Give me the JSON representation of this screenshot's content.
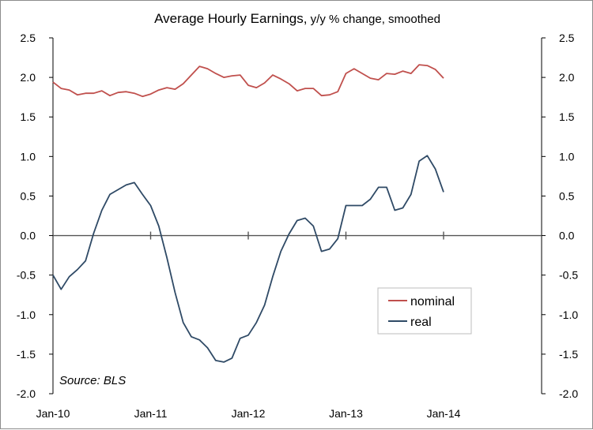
{
  "chart_data": {
    "type": "line",
    "title_main": "Average Hourly Earnings,",
    "title_sub": " y/y % change, smoothed",
    "source": "Source: BLS",
    "x_tick_labels": [
      "Jan-10",
      "Jan-11",
      "Jan-12",
      "Jan-13",
      "Jan-14"
    ],
    "y_tick_labels": [
      "2.5",
      "2.0",
      "1.5",
      "1.0",
      "0.5",
      "0.0",
      "-0.5",
      "-1.0",
      "-1.5",
      "-2.0"
    ],
    "ylim": [
      -2.0,
      2.5
    ],
    "y_ticks": [
      2.5,
      2.0,
      1.5,
      1.0,
      0.5,
      0.0,
      -0.5,
      -1.0,
      -1.5,
      -2.0
    ],
    "x_start": "Jan-10",
    "x_months": 48,
    "grid": false,
    "legend_position": "lower-right",
    "colors": {
      "nominal": "#c0504d",
      "real": "#2f4a66",
      "axis": "#000000"
    },
    "series": [
      {
        "name": "nominal",
        "values": [
          1.94,
          1.86,
          1.84,
          1.78,
          1.8,
          1.8,
          1.83,
          1.77,
          1.81,
          1.82,
          1.8,
          1.76,
          1.79,
          1.84,
          1.87,
          1.85,
          1.92,
          2.03,
          2.14,
          2.11,
          2.05,
          2.0,
          2.02,
          2.03,
          1.9,
          1.87,
          1.93,
          2.03,
          1.98,
          1.92,
          1.83,
          1.86,
          1.86,
          1.77,
          1.78,
          1.82,
          2.05,
          2.11,
          2.05,
          1.99,
          1.97,
          2.05,
          2.04,
          2.08,
          2.05,
          2.16,
          2.15,
          2.1,
          1.99
        ]
      },
      {
        "name": "real",
        "values": [
          -0.5,
          -0.68,
          -0.52,
          -0.43,
          -0.32,
          0.03,
          0.32,
          0.52,
          0.58,
          0.64,
          0.67,
          0.52,
          0.38,
          0.12,
          -0.28,
          -0.72,
          -1.1,
          -1.28,
          -1.32,
          -1.42,
          -1.58,
          -1.6,
          -1.55,
          -1.3,
          -1.26,
          -1.1,
          -0.88,
          -0.52,
          -0.2,
          0.02,
          0.19,
          0.22,
          0.12,
          -0.2,
          -0.17,
          -0.04,
          0.38,
          0.38,
          0.38,
          0.46,
          0.61,
          0.61,
          0.32,
          0.35,
          0.52,
          0.94,
          1.01,
          0.84,
          0.55
        ]
      }
    ]
  }
}
